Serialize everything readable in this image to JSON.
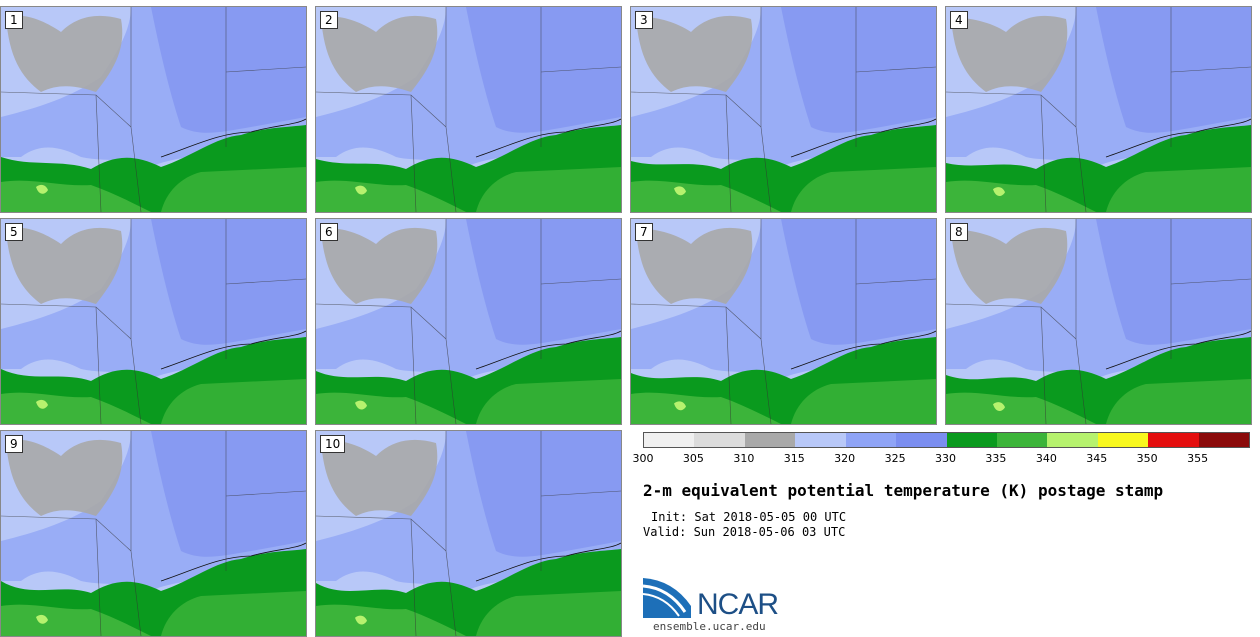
{
  "panels": [
    {
      "label": "1"
    },
    {
      "label": "2"
    },
    {
      "label": "3"
    },
    {
      "label": "4"
    },
    {
      "label": "5"
    },
    {
      "label": "6"
    },
    {
      "label": "7"
    },
    {
      "label": "8"
    },
    {
      "label": "9"
    },
    {
      "label": "10"
    }
  ],
  "colorbar": {
    "colors": [
      "#f0f0f0",
      "#dcdcdc",
      "#a9a9a9",
      "#b8c8f8",
      "#8fa4f6",
      "#7b8ef0",
      "#0a9a1e",
      "#3cb43a",
      "#b6f26e",
      "#f8f81e",
      "#e40e0e",
      "#8b0a0a"
    ],
    "ticks": [
      "300",
      "305",
      "310",
      "315",
      "320",
      "325",
      "330",
      "335",
      "340",
      "345",
      "350",
      "355"
    ]
  },
  "map_colors": {
    "grey": "#a9a9a9",
    "light_blue": "#b8c8f8",
    "blue": "#8fa4f6",
    "dark_green": "#0a9a1e",
    "green": "#3cb43a",
    "light_green": "#b6f26e"
  },
  "title": "2-m equivalent potential temperature (K) postage stamp",
  "init": "Init: Sat 2018-05-05 00 UTC",
  "valid": "Valid: Sun 2018-05-06 03 UTC",
  "logo": {
    "text": "NCAR",
    "site": "ensemble.ucar.edu"
  }
}
